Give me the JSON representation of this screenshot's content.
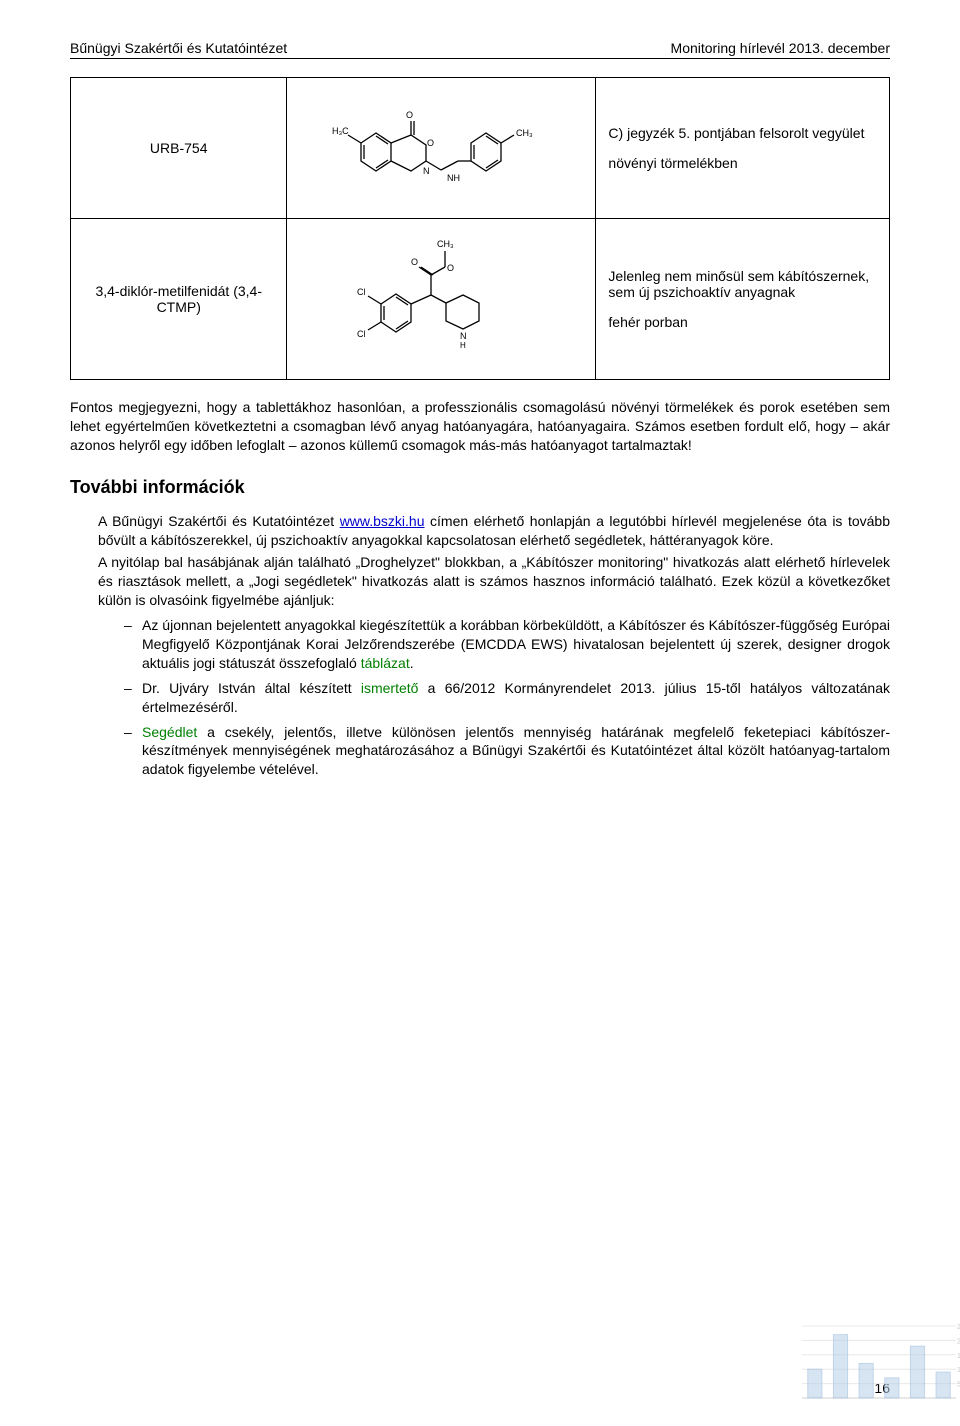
{
  "header": {
    "left": "Bűnügyi Szakértői és Kutatóintézet",
    "right": "Monitoring hírlevél 2013. december"
  },
  "table": {
    "rows": [
      {
        "name": "URB-754",
        "structure": "urb754",
        "desc_line1": "C) jegyzék 5. pontjában felsorolt vegyület",
        "desc_line2": "növényi törmelékben"
      },
      {
        "name": "3,4-diklór-metilfenidát (3,4-CTMP)",
        "structure": "ctmp",
        "desc_line1": "Jelenleg nem minősül sem kábítószernek, sem új pszichoaktív anyagnak",
        "desc_line2": "fehér porban"
      }
    ]
  },
  "paragraph1": "Fontos megjegyezni, hogy a tablettákhoz hasonlóan, a professzionális csomagolású növényi törmelékek és porok esetében sem lehet egyértelműen következtetni a csomagban lévő anyag hatóanyagára, hatóanyagaira. Számos esetben fordult elő, hogy – akár azonos helyről egy időben lefoglalt – azonos küllemű csomagok más-más hatóanyagot tartalmaztak!",
  "section_title": "További információk",
  "body": {
    "p1_a": "A Bűnügyi Szakértői és Kutatóintézet ",
    "link_text": "www.bszki.hu",
    "p1_b": " címen elérhető honlapján a legutóbbi hírlevél megjelenése óta is tovább bővült a kábítószerekkel, új pszichoaktív anyagokkal kapcsolatosan elérhető segédletek, háttéranyagok köre.",
    "p2": "A nyitólap bal hasábjának alján található „Droghelyzet\" blokkban, a „Kábítószer monitoring\" hivatkozás alatt elérhető hírlevelek és riasztások mellett, a „Jogi segédletek\" hivatkozás alatt is számos hasznos információ található. Ezek közül a következőket külön is olvasóink figyelmébe ajánljuk:",
    "bullets": [
      {
        "pre": "Az újonnan bejelentett anyagokkal kiegészítettük a korábban körbeküldött, a Kábítószer és Kábítószer-függőség Európai Megfigyelő Központjának Korai Jelzőrendszerébe (EMCDDA EWS) hivatalosan bejelentett új szerek, designer drogok aktuális jogi státuszát összefoglaló ",
        "green": "táblázat",
        "post": "."
      },
      {
        "pre": "Dr. Ujváry István által készített ",
        "green": "ismertető",
        "post": " a 66/2012 Kormányrendelet 2013. július 15-től hatályos változatának értelmezéséről."
      },
      {
        "pre": "",
        "green": "Segédlet",
        "post": " a csekély, jelentős, illetve különösen jelentős mennyiség határának megfelelő feketepiaci kábítószer-készítmények mennyiségének meghatározásához a Bűnügyi Szakértői és Kutatóintézet által közölt hatóanyag-tartalom adatok figyelembe vételével."
      }
    ]
  },
  "page_number": "16",
  "corner_chart": {
    "bar_color": "#b7cfe8",
    "bar_edge": "#8fb3d9",
    "grid_color": "#e8e8e8",
    "axis_labels": [
      "5",
      "10",
      "15",
      "20",
      "25"
    ],
    "bars": [
      10,
      22,
      12,
      7,
      18,
      9
    ]
  }
}
